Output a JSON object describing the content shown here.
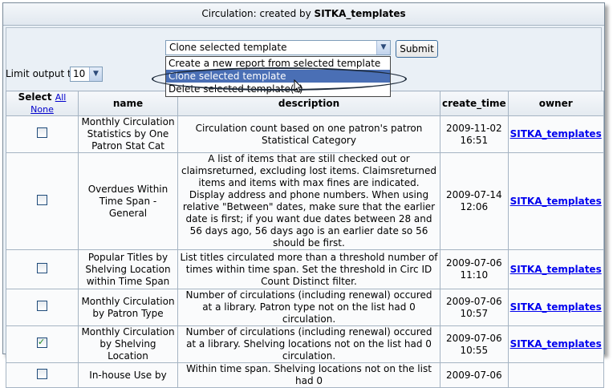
{
  "title": {
    "prefix": "Circulation: created by ",
    "owner": "SITKA_templates"
  },
  "action_select": {
    "value": "Clone selected template",
    "options": [
      "Create a new report from selected template",
      "Clone selected template",
      "Delete selected template(s)"
    ],
    "highlighted_index": 1
  },
  "submit_label": "Submit",
  "limit": {
    "label": "Limit output to",
    "value": "10"
  },
  "table": {
    "headers": {
      "select": "Select",
      "all": "All",
      "none": "None",
      "name": "name",
      "description": "description",
      "create_time": "create_time",
      "owner": "owner"
    },
    "rows": [
      {
        "checked": false,
        "name": "Monthly Circulation Statistics by One Patron Stat Cat",
        "description": "Circulation count based on one patron's patron Statistical Category",
        "create_time": "2009-11-02 16:51",
        "owner": "SITKA_templates"
      },
      {
        "checked": false,
        "name": "Overdues Within Time Span - General",
        "description": "A list of items that are still checked out or claimsreturned, excluding lost items. Claimsreturned items and items with max fines are indicated. Display address and phone numbers. When using relative \"Between\" dates, make sure that the earlier date is first; if you want due dates between 28 and 56 days ago, 56 days ago is an earlier date so 56 should be first.",
        "create_time": "2009-07-14 12:06",
        "owner": "SITKA_templates"
      },
      {
        "checked": false,
        "name": "Popular Titles by Shelving Location within Time Span",
        "description": "List titles circulated more than a threshold number of times within time span. Set the threshold in Circ ID Count Distinct filter.",
        "create_time": "2009-07-06 11:10",
        "owner": "SITKA_templates"
      },
      {
        "checked": false,
        "name": "Monthly Circulation by Patron Type",
        "description": "Number of circulations (including renewal) occured at a library. Patron type not on the list had 0 circulation.",
        "create_time": "2009-07-06 10:57",
        "owner": "SITKA_templates"
      },
      {
        "checked": true,
        "name": "Monthly Circulation by Shelving Location",
        "description": "Number of circulations (including renewal) occured at a library. Shelving locations not on the list had 0 circulation.",
        "create_time": "2009-07-06 10:55",
        "owner": "SITKA_templates"
      },
      {
        "checked": false,
        "name": "In-house Use by",
        "description": "Within time span. Shelving locations not on the list had 0",
        "create_time": "2009-07-06",
        "owner": ""
      }
    ]
  }
}
